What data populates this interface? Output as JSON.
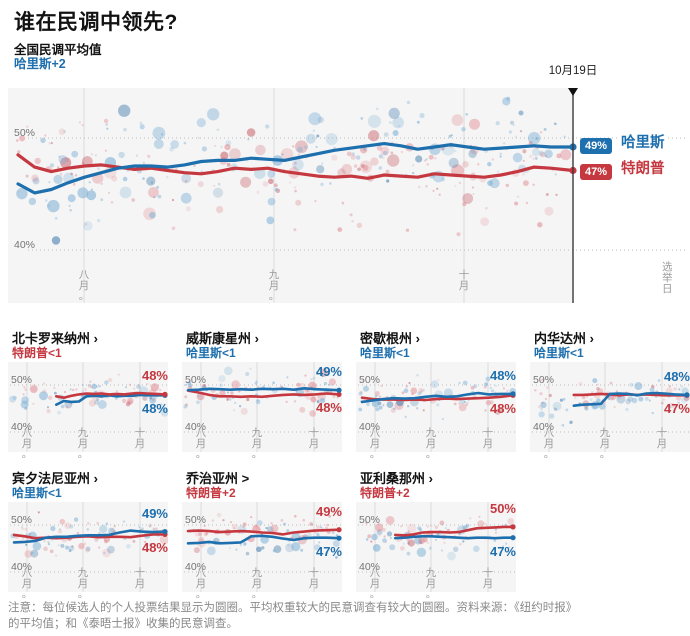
{
  "header": {
    "title": "谁在民调中领先?",
    "subtitle": "全国民调平均值",
    "lead": "哈里斯+2"
  },
  "colors": {
    "harris": "#1e6fad",
    "trump": "#c53840",
    "harris_dot": "#7db0d5",
    "harris_dot_dark": "#4a81b0",
    "trump_dot": "#e28f96",
    "trump_dot_dark": "#c9656e",
    "plot_bg": "#f5f5f5",
    "grid": "#dcdcdc",
    "dotted_grid": "#bdbdbd",
    "marker_line": "#3a3a3a",
    "axis_text": "#9b9b9b"
  },
  "note": {
    "line1": "注意：每位候选人的个人投票结果显示为圆圈。平均权重较大的民意调查有较大的圆圈。资料来源：《纽约时报》",
    "line2": "的平均值；和《泰晤士报》收集的民意调查。"
  },
  "chart_data": [
    {
      "id": "national",
      "type": "scatter-line",
      "kind": "main",
      "title": "全国民调平均值",
      "ylim": [
        37,
        54
      ],
      "x_ticks": [
        "八月。",
        "九月。",
        "十月"
      ],
      "right_tick": "选举日",
      "marker": {
        "label": "10月19日"
      },
      "y_ticks": [
        {
          "label": "50%",
          "value": 50
        },
        {
          "label": "40%",
          "value": 40
        }
      ],
      "series": [
        {
          "name": "特朗普",
          "key": "trump",
          "x": [
            0,
            0.03,
            0.06,
            0.09,
            0.12,
            0.15,
            0.18,
            0.21,
            0.24,
            0.27,
            0.3,
            0.33,
            0.36,
            0.39,
            0.42,
            0.45,
            0.48,
            0.51,
            0.54,
            0.57,
            0.6,
            0.63,
            0.66,
            0.69,
            0.72,
            0.75,
            0.78,
            0.81,
            0.84,
            0.87,
            0.9,
            0.93,
            0.96,
            1
          ],
          "y": [
            48.5,
            47.4,
            47.0,
            47.3,
            47.5,
            47.6,
            47.4,
            47.2,
            47.3,
            47.1,
            46.9,
            46.8,
            47.0,
            47.3,
            47.2,
            47.3,
            47.0,
            46.8,
            46.6,
            46.5,
            46.6,
            46.4,
            46.7,
            46.6,
            46.5,
            46.8,
            46.7,
            46.6,
            46.5,
            46.7,
            47.0,
            47.4,
            47.3,
            47.1
          ]
        },
        {
          "name": "哈里斯",
          "key": "harris",
          "x": [
            0,
            0.03,
            0.06,
            0.09,
            0.12,
            0.15,
            0.18,
            0.21,
            0.24,
            0.27,
            0.3,
            0.33,
            0.36,
            0.39,
            0.42,
            0.45,
            0.48,
            0.51,
            0.54,
            0.57,
            0.6,
            0.63,
            0.66,
            0.69,
            0.72,
            0.75,
            0.78,
            0.81,
            0.84,
            0.87,
            0.9,
            0.93,
            0.96,
            1
          ],
          "y": [
            45.9,
            45.1,
            45.4,
            46.0,
            46.5,
            46.9,
            47.3,
            47.5,
            47.5,
            47.4,
            47.6,
            47.9,
            48.0,
            48.0,
            48.2,
            48.1,
            48.0,
            48.3,
            48.6,
            48.9,
            49.1,
            49.3,
            49.5,
            49.3,
            49.0,
            49.2,
            49.4,
            49.2,
            49.0,
            49.1,
            49.2,
            49.3,
            49.2,
            49.2
          ]
        }
      ],
      "end_labels": [
        {
          "text": "49%",
          "name": "哈里斯",
          "key": "harris"
        },
        {
          "text": "47%",
          "name": "特朗普",
          "key": "trump"
        }
      ]
    },
    {
      "id": "north-carolina",
      "type": "scatter-line",
      "kind": "small",
      "title": "北卡罗来纳州 ›",
      "subtitle": "特朗普<1",
      "subtitle_key": "trump",
      "ylim": [
        40,
        53
      ],
      "x_ticks": [
        "八月。",
        "九月。",
        "十月"
      ],
      "y_ticks": [
        {
          "label": "50%",
          "value": 50
        },
        {
          "label": "40%",
          "value": 40
        }
      ],
      "series": [
        {
          "name": "哈里斯",
          "key": "harris",
          "x": [
            0.28,
            0.33,
            0.38,
            0.43,
            0.48,
            0.53,
            0.58,
            0.63,
            0.68,
            0.73,
            0.78,
            0.83,
            0.88,
            0.94,
            1
          ],
          "y": [
            45.8,
            46.6,
            46.4,
            46.5,
            47.6,
            47.7,
            47.6,
            47.8,
            47.6,
            47.7,
            47.7,
            47.9,
            47.8,
            47.8,
            47.8
          ]
        },
        {
          "name": "特朗普",
          "key": "trump",
          "x": [
            0.28,
            0.33,
            0.38,
            0.43,
            0.48,
            0.53,
            0.58,
            0.63,
            0.68,
            0.73,
            0.78,
            0.83,
            0.88,
            0.94,
            1
          ],
          "y": [
            47.6,
            47.3,
            47.7,
            48.0,
            48.2,
            48.1,
            48.2,
            48.0,
            48.1,
            48.0,
            48.2,
            48.3,
            48.2,
            48.1,
            48.0
          ]
        }
      ],
      "end_labels": [
        {
          "text": "48%",
          "key": "trump"
        },
        {
          "text": "48%",
          "key": "harris"
        }
      ]
    },
    {
      "id": "wisconsin",
      "type": "scatter-line",
      "kind": "small",
      "title": "威斯康星州 ›",
      "subtitle": "哈里斯<1",
      "subtitle_key": "harris",
      "ylim": [
        40,
        53
      ],
      "x_ticks": [
        "八月。",
        "九月。",
        "十月"
      ],
      "y_ticks": [
        {
          "label": "50%",
          "value": 50
        },
        {
          "label": "40%",
          "value": 40
        }
      ],
      "series": [
        {
          "name": "特朗普",
          "key": "trump",
          "x": [
            0,
            0.07,
            0.14,
            0.21,
            0.28,
            0.35,
            0.42,
            0.49,
            0.56,
            0.63,
            0.7,
            0.77,
            0.84,
            0.92,
            1
          ],
          "y": [
            48.8,
            48.4,
            47.9,
            47.6,
            47.6,
            47.5,
            47.6,
            47.5,
            47.7,
            47.9,
            48.0,
            47.9,
            48.0,
            48.2,
            48.0
          ]
        },
        {
          "name": "哈里斯",
          "key": "harris",
          "x": [
            0,
            0.07,
            0.14,
            0.21,
            0.28,
            0.35,
            0.42,
            0.49,
            0.56,
            0.63,
            0.7,
            0.77,
            0.84,
            0.92,
            1
          ],
          "y": [
            48.9,
            49.0,
            49.2,
            49.1,
            49.0,
            49.1,
            49.0,
            49.2,
            49.1,
            49.2,
            49.0,
            49.3,
            49.1,
            49.0,
            48.9
          ]
        }
      ],
      "end_labels": [
        {
          "text": "49%",
          "key": "harris"
        },
        {
          "text": "48%",
          "key": "trump"
        }
      ]
    },
    {
      "id": "michigan",
      "type": "scatter-line",
      "kind": "small",
      "title": "密歇根州 ›",
      "subtitle": "哈里斯<1",
      "subtitle_key": "harris",
      "ylim": [
        40,
        53
      ],
      "x_ticks": [
        "八月。",
        "九月。",
        "十月"
      ],
      "y_ticks": [
        {
          "label": "50%",
          "value": 50
        },
        {
          "label": "40%",
          "value": 40
        }
      ],
      "series": [
        {
          "name": "特朗普",
          "key": "trump",
          "x": [
            0,
            0.07,
            0.14,
            0.21,
            0.28,
            0.35,
            0.42,
            0.49,
            0.56,
            0.63,
            0.7,
            0.77,
            0.84,
            0.92,
            1
          ],
          "y": [
            47.3,
            47.0,
            46.9,
            46.9,
            46.8,
            46.9,
            46.8,
            47.0,
            47.1,
            47.0,
            47.1,
            47.2,
            47.3,
            47.5,
            47.8
          ]
        },
        {
          "name": "哈里斯",
          "key": "harris",
          "x": [
            0,
            0.07,
            0.14,
            0.21,
            0.28,
            0.35,
            0.42,
            0.49,
            0.56,
            0.63,
            0.7,
            0.77,
            0.84,
            0.92,
            1
          ],
          "y": [
            46.4,
            46.7,
            47.0,
            47.2,
            47.1,
            47.2,
            47.5,
            47.7,
            47.5,
            47.6,
            48.0,
            48.3,
            48.0,
            48.1,
            48.1
          ]
        }
      ],
      "end_labels": [
        {
          "text": "48%",
          "key": "harris"
        },
        {
          "text": "48%",
          "key": "trump"
        }
      ]
    },
    {
      "id": "nevada",
      "type": "scatter-line",
      "kind": "small",
      "title": "内华达州 ›",
      "subtitle": "哈里斯<1",
      "subtitle_key": "harris",
      "ylim": [
        40,
        53
      ],
      "x_ticks": [
        "八月。",
        "九月。",
        "十月"
      ],
      "y_ticks": [
        {
          "label": "50%",
          "value": 50
        },
        {
          "label": "40%",
          "value": 40
        }
      ],
      "series": [
        {
          "name": "特朗普",
          "key": "trump",
          "x": [
            0.25,
            0.31,
            0.37,
            0.43,
            0.49,
            0.55,
            0.61,
            0.67,
            0.73,
            0.79,
            0.85,
            0.92,
            1
          ],
          "y": [
            47.9,
            47.9,
            48.0,
            48.1,
            48.0,
            47.8,
            48.0,
            47.9,
            48.0,
            47.9,
            47.8,
            47.8,
            47.8
          ]
        },
        {
          "name": "哈里斯",
          "key": "harris",
          "x": [
            0.25,
            0.31,
            0.37,
            0.43,
            0.49,
            0.55,
            0.61,
            0.67,
            0.73,
            0.79,
            0.85,
            0.92,
            1
          ],
          "y": [
            45.6,
            45.8,
            45.9,
            46.0,
            48.1,
            48.2,
            48.1,
            47.8,
            48.2,
            48.3,
            48.2,
            48.0,
            47.9
          ]
        }
      ],
      "end_labels": [
        {
          "text": "48%",
          "key": "harris"
        },
        {
          "text": "47%",
          "key": "trump"
        }
      ]
    },
    {
      "id": "pennsylvania",
      "type": "scatter-line",
      "kind": "small",
      "title": "宾夕法尼亚州 ›",
      "subtitle": "哈里斯<1",
      "subtitle_key": "harris",
      "ylim": [
        40,
        53
      ],
      "x_ticks": [
        "八月。",
        "九月。",
        "十月"
      ],
      "y_ticks": [
        {
          "label": "50%",
          "value": 50
        },
        {
          "label": "40%",
          "value": 40
        }
      ],
      "series": [
        {
          "name": "特朗普",
          "key": "trump",
          "x": [
            0,
            0.07,
            0.14,
            0.21,
            0.28,
            0.35,
            0.42,
            0.49,
            0.56,
            0.63,
            0.7,
            0.77,
            0.84,
            0.92,
            1
          ],
          "y": [
            47.9,
            47.6,
            47.2,
            47.3,
            47.2,
            47.3,
            47.5,
            47.6,
            47.4,
            47.5,
            47.5,
            47.4,
            47.7,
            48.0,
            48.0
          ]
        },
        {
          "name": "哈里斯",
          "key": "harris",
          "x": [
            0,
            0.07,
            0.14,
            0.21,
            0.28,
            0.35,
            0.42,
            0.49,
            0.56,
            0.63,
            0.7,
            0.77,
            0.84,
            0.92,
            1
          ],
          "y": [
            46.3,
            46.4,
            46.6,
            47.3,
            47.5,
            47.5,
            47.7,
            47.8,
            47.8,
            47.9,
            48.4,
            48.8,
            48.6,
            48.5,
            48.6
          ]
        }
      ],
      "end_labels": [
        {
          "text": "49%",
          "key": "harris"
        },
        {
          "text": "48%",
          "key": "trump"
        }
      ]
    },
    {
      "id": "georgia",
      "type": "scatter-line",
      "kind": "small",
      "title": "乔治亚州 >",
      "subtitle": "特朗普+2",
      "subtitle_key": "trump",
      "ylim": [
        40,
        53
      ],
      "x_ticks": [
        "八月。",
        "九月。",
        "十月"
      ],
      "y_ticks": [
        {
          "label": "50%",
          "value": 50
        },
        {
          "label": "40%",
          "value": 40
        }
      ],
      "series": [
        {
          "name": "哈里斯",
          "key": "harris",
          "x": [
            0,
            0.07,
            0.14,
            0.21,
            0.28,
            0.35,
            0.42,
            0.49,
            0.56,
            0.63,
            0.7,
            0.77,
            0.84,
            0.92,
            1
          ],
          "y": [
            46.1,
            46.2,
            46.4,
            46.1,
            46.2,
            46.3,
            47.6,
            47.7,
            47.5,
            47.1,
            46.8,
            47.2,
            47.3,
            47.3,
            47.2
          ]
        },
        {
          "name": "特朗普",
          "key": "trump",
          "x": [
            0,
            0.07,
            0.14,
            0.21,
            0.28,
            0.35,
            0.42,
            0.49,
            0.56,
            0.63,
            0.7,
            0.77,
            0.84,
            0.92,
            1
          ],
          "y": [
            48.7,
            48.8,
            48.7,
            48.5,
            48.6,
            48.7,
            48.6,
            48.4,
            48.3,
            48.0,
            48.4,
            48.6,
            48.8,
            48.9,
            49.0
          ]
        }
      ],
      "end_labels": [
        {
          "text": "49%",
          "key": "trump"
        },
        {
          "text": "47%",
          "key": "harris"
        }
      ]
    },
    {
      "id": "arizona",
      "type": "scatter-line",
      "kind": "small",
      "title": "亚利桑那州 ›",
      "subtitle": "特朗普+2",
      "subtitle_key": "trump",
      "ylim": [
        40,
        53
      ],
      "x_ticks": [
        "八月。",
        "九月。",
        "十月"
      ],
      "y_ticks": [
        {
          "label": "50%",
          "value": 50
        },
        {
          "label": "40%",
          "value": 40
        }
      ],
      "series": [
        {
          "name": "哈里斯",
          "key": "harris",
          "x": [
            0.22,
            0.28,
            0.34,
            0.4,
            0.46,
            0.52,
            0.58,
            0.64,
            0.7,
            0.76,
            0.82,
            0.88,
            0.94,
            1
          ],
          "y": [
            47.2,
            47.3,
            47.5,
            47.6,
            47.6,
            47.5,
            47.4,
            47.3,
            47.2,
            47.3,
            47.3,
            47.2,
            47.3,
            47.3
          ]
        },
        {
          "name": "特朗普",
          "key": "trump",
          "x": [
            0.22,
            0.28,
            0.34,
            0.4,
            0.46,
            0.52,
            0.58,
            0.64,
            0.7,
            0.76,
            0.82,
            0.88,
            0.94,
            1
          ],
          "y": [
            47.9,
            47.8,
            48.0,
            48.4,
            48.5,
            48.5,
            48.4,
            48.5,
            48.9,
            49.3,
            49.4,
            49.5,
            49.6,
            49.6
          ]
        }
      ],
      "end_labels": [
        {
          "text": "50%",
          "key": "trump"
        },
        {
          "text": "47%",
          "key": "harris"
        }
      ]
    }
  ]
}
